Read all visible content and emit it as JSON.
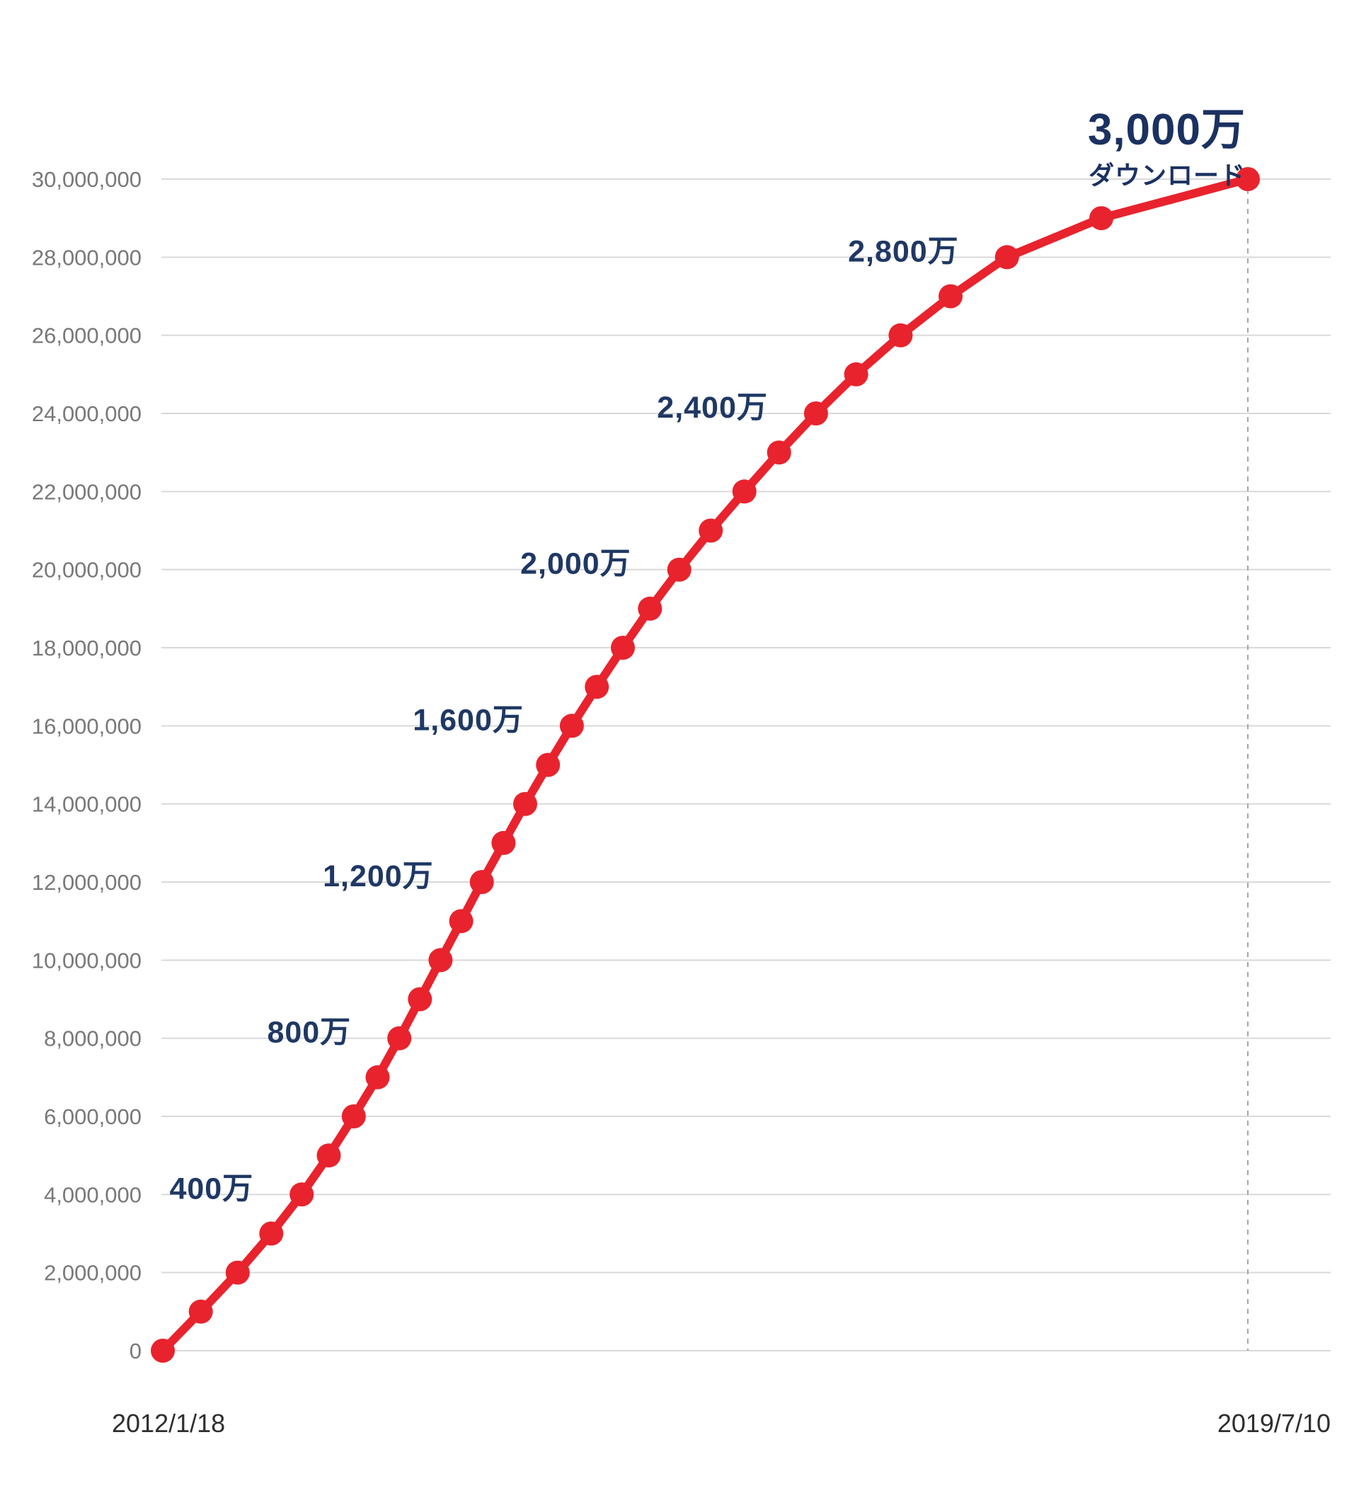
{
  "chart_data": {
    "type": "line",
    "title": "",
    "final_label": {
      "value": "3,000万",
      "sub": "ダウンロード"
    },
    "x_axis": {
      "start_label": "2012/1/18",
      "end_label": "2019/7/10"
    },
    "y_axis": {
      "min": 0,
      "max": 30000000,
      "tick_step": 2000000,
      "ticks": [
        {
          "value": 0,
          "label": "0"
        },
        {
          "value": 2000000,
          "label": "2,000,000"
        },
        {
          "value": 4000000,
          "label": "4,000,000"
        },
        {
          "value": 6000000,
          "label": "6,000,000"
        },
        {
          "value": 8000000,
          "label": "8,000,000"
        },
        {
          "value": 10000000,
          "label": "10,000,000"
        },
        {
          "value": 12000000,
          "label": "12,000,000"
        },
        {
          "value": 14000000,
          "label": "14,000,000"
        },
        {
          "value": 16000000,
          "label": "16,000,000"
        },
        {
          "value": 18000000,
          "label": "18,000,000"
        },
        {
          "value": 20000000,
          "label": "20,000,000"
        },
        {
          "value": 22000000,
          "label": "22,000,000"
        },
        {
          "value": 24000000,
          "label": "24,000,000"
        },
        {
          "value": 26000000,
          "label": "26,000,000"
        },
        {
          "value": 28000000,
          "label": "28,000,000"
        },
        {
          "value": 30000000,
          "label": "30,000,000"
        }
      ]
    },
    "points": [
      {
        "value": 0,
        "x_frac": 0.0
      },
      {
        "value": 1000000,
        "x_frac": 0.035
      },
      {
        "value": 2000000,
        "x_frac": 0.069
      },
      {
        "value": 3000000,
        "x_frac": 0.1
      },
      {
        "value": 4000000,
        "x_frac": 0.128
      },
      {
        "value": 5000000,
        "x_frac": 0.153
      },
      {
        "value": 6000000,
        "x_frac": 0.176
      },
      {
        "value": 7000000,
        "x_frac": 0.198
      },
      {
        "value": 8000000,
        "x_frac": 0.218
      },
      {
        "value": 9000000,
        "x_frac": 0.237
      },
      {
        "value": 10000000,
        "x_frac": 0.256
      },
      {
        "value": 11000000,
        "x_frac": 0.275
      },
      {
        "value": 12000000,
        "x_frac": 0.294
      },
      {
        "value": 13000000,
        "x_frac": 0.314
      },
      {
        "value": 14000000,
        "x_frac": 0.334
      },
      {
        "value": 15000000,
        "x_frac": 0.355
      },
      {
        "value": 16000000,
        "x_frac": 0.377
      },
      {
        "value": 17000000,
        "x_frac": 0.4
      },
      {
        "value": 18000000,
        "x_frac": 0.424
      },
      {
        "value": 19000000,
        "x_frac": 0.449
      },
      {
        "value": 20000000,
        "x_frac": 0.476
      },
      {
        "value": 21000000,
        "x_frac": 0.505
      },
      {
        "value": 22000000,
        "x_frac": 0.536
      },
      {
        "value": 23000000,
        "x_frac": 0.568
      },
      {
        "value": 24000000,
        "x_frac": 0.602
      },
      {
        "value": 25000000,
        "x_frac": 0.639
      },
      {
        "value": 26000000,
        "x_frac": 0.68
      },
      {
        "value": 27000000,
        "x_frac": 0.726
      },
      {
        "value": 28000000,
        "x_frac": 0.778
      },
      {
        "value": 29000000,
        "x_frac": 0.865
      },
      {
        "value": 30000000,
        "x_frac": 1.0
      }
    ],
    "milestone_labels": [
      {
        "text": "400万",
        "value": 4000000
      },
      {
        "text": "800万",
        "value": 8000000
      },
      {
        "text": "1,200万",
        "value": 12000000
      },
      {
        "text": "1,600万",
        "value": 16000000
      },
      {
        "text": "2,000万",
        "value": 20000000
      },
      {
        "text": "2,400万",
        "value": 24000000
      },
      {
        "text": "2,800万",
        "value": 28000000
      }
    ],
    "colors": {
      "line": "#e8232d",
      "label": "#1f3864",
      "axis_text": "#787878",
      "gridline": "#d9d9d9",
      "dashed": "#a6a6a6"
    }
  }
}
